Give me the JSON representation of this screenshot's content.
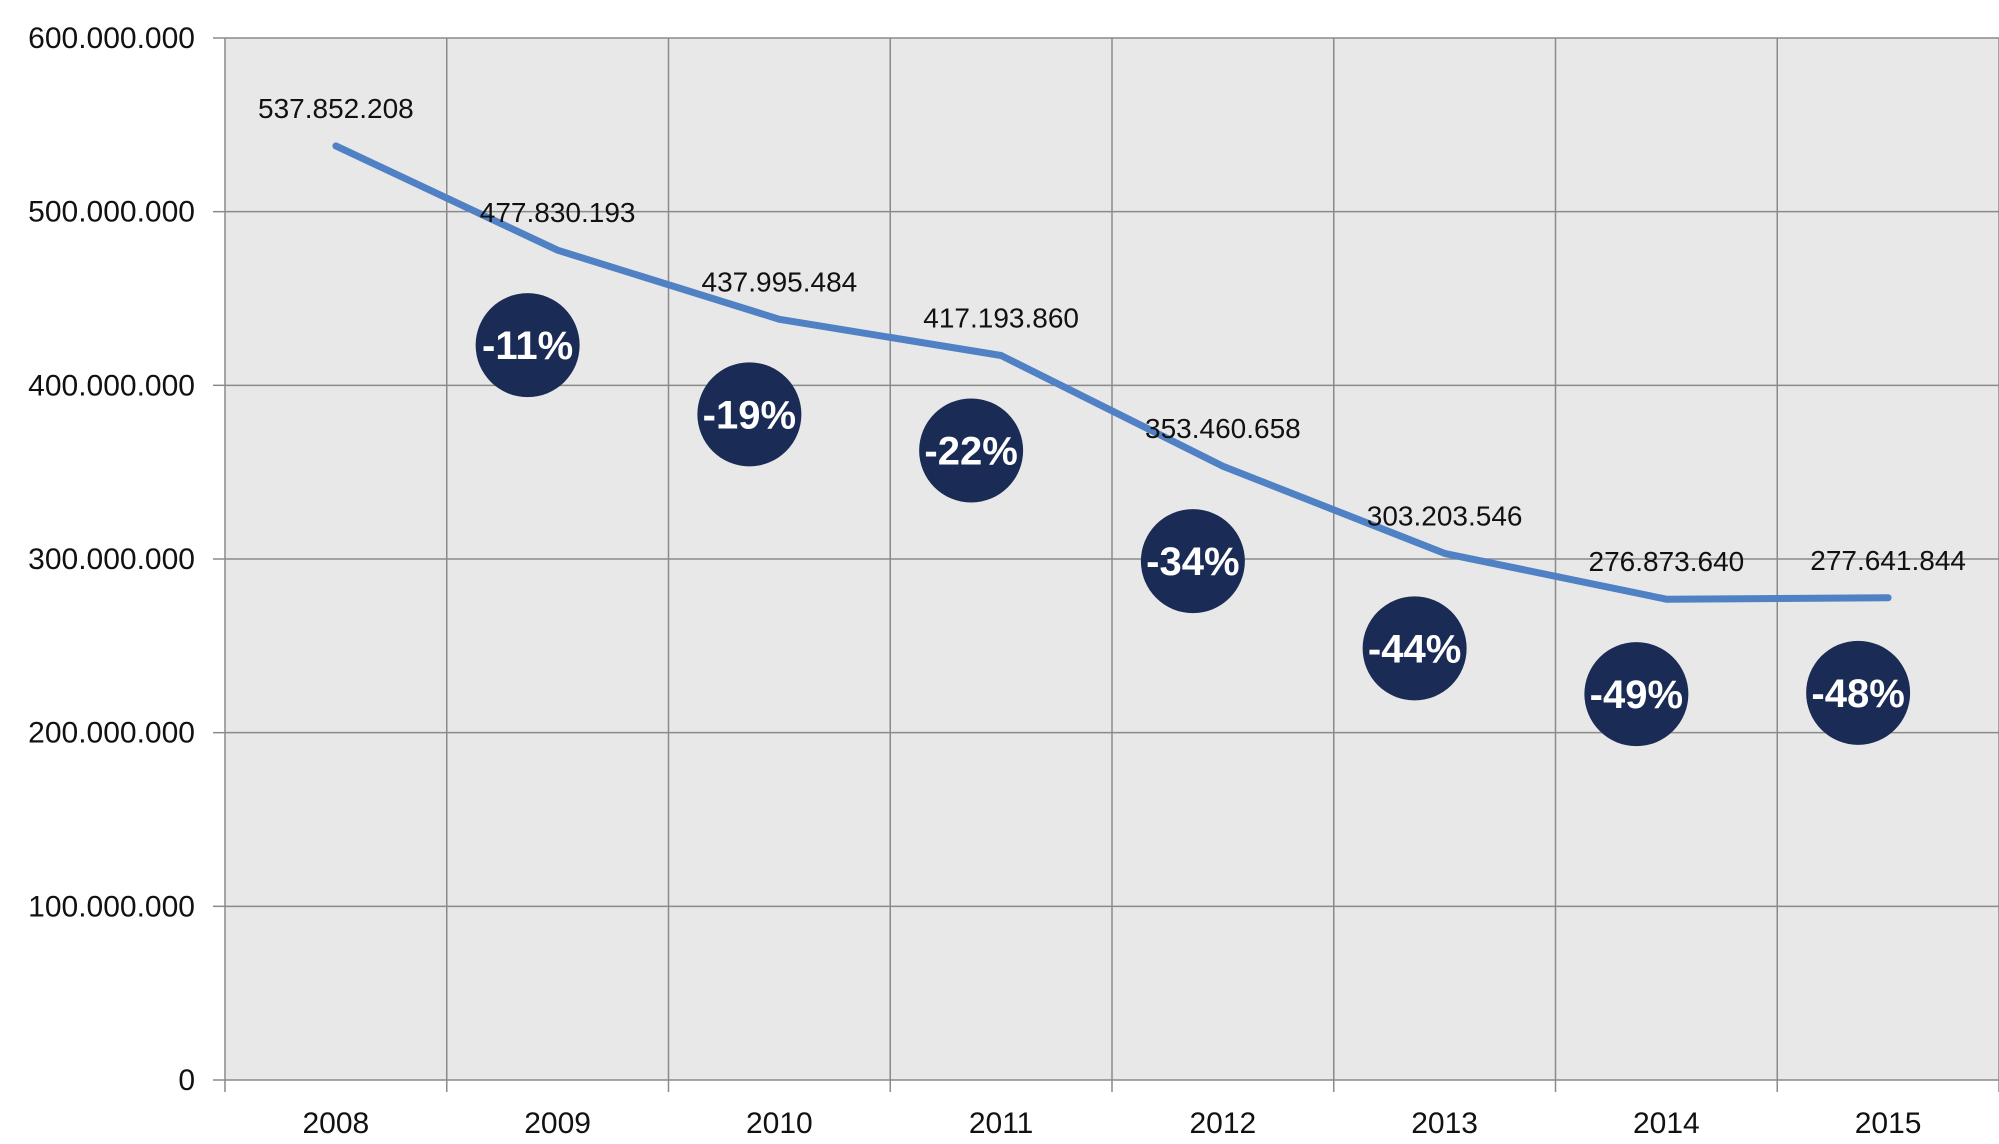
{
  "chart_data": {
    "type": "line",
    "title": "",
    "xlabel": "",
    "ylabel": "",
    "categories": [
      "2008",
      "2009",
      "2010",
      "2011",
      "2012",
      "2013",
      "2014",
      "2015"
    ],
    "values": [
      537852208,
      477830193,
      437995484,
      417193860,
      353460658,
      303203546,
      276873640,
      277641844
    ],
    "value_labels": [
      "537.852.208",
      "477.830.193",
      "437.995.484",
      "417.193.860",
      "353.460.658",
      "303.203.546",
      "276.873.640",
      "277.641.844"
    ],
    "change_badges": [
      {
        "x": "2009",
        "label": "-11%"
      },
      {
        "x": "2010",
        "label": "-19%"
      },
      {
        "x": "2011",
        "label": "-22%"
      },
      {
        "x": "2012",
        "label": "-34%"
      },
      {
        "x": "2013",
        "label": "-44%"
      },
      {
        "x": "2014",
        "label": "-49%"
      },
      {
        "x": "2015",
        "label": "-48%"
      }
    ],
    "ylim": [
      0,
      600000000
    ],
    "yticks": [
      0,
      100000000,
      200000000,
      300000000,
      400000000,
      500000000,
      600000000
    ],
    "ytick_labels": [
      "0",
      "100.000.000",
      "200.000.000",
      "300.000.000",
      "400.000.000",
      "500.000.000",
      "600.000.000"
    ],
    "grid": true,
    "legend": "none",
    "colors": {
      "line": "#4f81c4",
      "plot_bg": "#e8e8e8",
      "grid": "#8a8a8a",
      "badge": "#1a2b55",
      "badge_text": "#ffffff"
    }
  }
}
